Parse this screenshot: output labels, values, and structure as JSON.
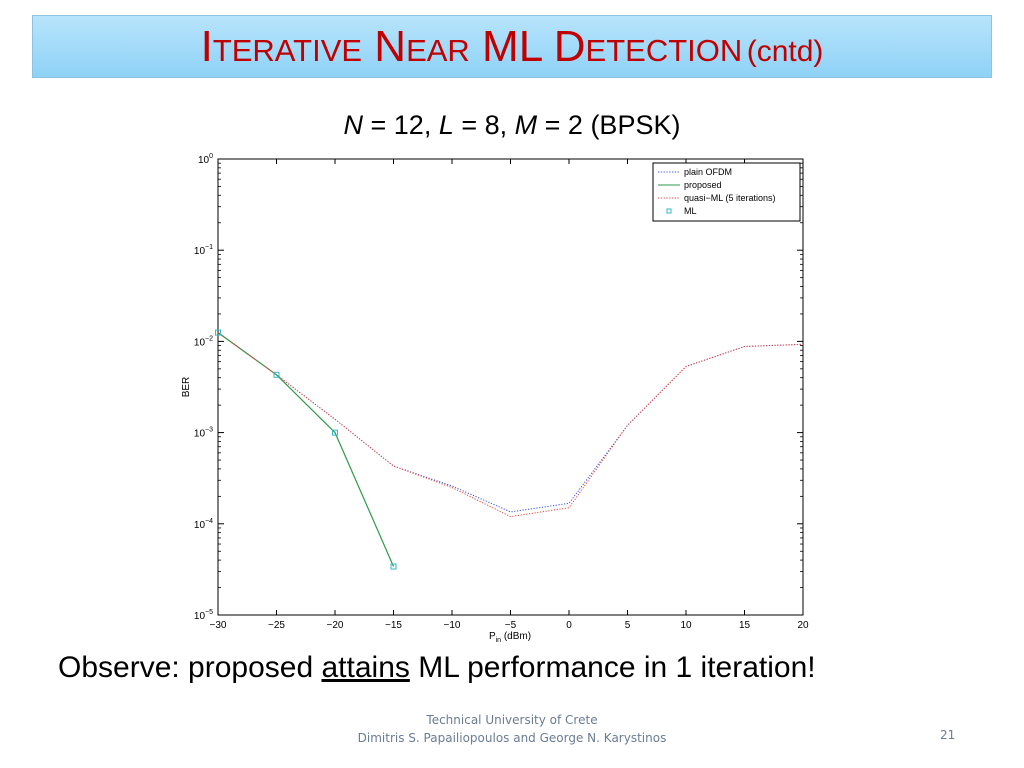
{
  "slide": {
    "title_main": "Iterative Near ML Detection",
    "title_cntd": "(cntd)",
    "subtitle": {
      "n_var": "N",
      "n_eq": " = 12, ",
      "l_var": "L",
      "l_eq": " = 8, ",
      "m_var": "M",
      "m_eq": " = 2 (BPSK)"
    },
    "observe": {
      "before": "Observe: proposed ",
      "underlined": "attains",
      "after": " ML performance in 1 iteration!"
    },
    "footer_line1": "Technical University of Crete",
    "footer_line2": "Dimitris S. Papailiopoulos  and George N. Karystinos",
    "page_number": "21"
  },
  "chart_data": {
    "type": "line",
    "xlabel": "P",
    "xlabel_sub": "in",
    "xlabel_unit": " (dBm)",
    "ylabel": "BER",
    "xlim": [
      -30,
      20
    ],
    "ylim": [
      1e-05,
      1
    ],
    "y_scale": "log",
    "grid": false,
    "legend_position": "top-right",
    "x_ticks": [
      -30,
      -25,
      -20,
      -15,
      -10,
      -5,
      0,
      5,
      10,
      15,
      20
    ],
    "y_ticks": [
      {
        "exp": -5,
        "base": "10",
        "sup": "−5"
      },
      {
        "exp": -4,
        "base": "10",
        "sup": "−4"
      },
      {
        "exp": -3,
        "base": "10",
        "sup": "−3"
      },
      {
        "exp": -2,
        "base": "10",
        "sup": "−2"
      },
      {
        "exp": -1,
        "base": "10",
        "sup": "−1"
      },
      {
        "exp": 0,
        "base": "10",
        "sup": "0"
      }
    ],
    "series": [
      {
        "name": "plain OFDM",
        "style": "dotted",
        "color": "#3b4fd8",
        "x": [
          -30,
          -25,
          -20,
          -15,
          -10,
          -5,
          0,
          5,
          10,
          15,
          20
        ],
        "y": [
          0.0125,
          0.0043,
          0.0014,
          0.00043,
          0.00026,
          0.000135,
          0.000168,
          0.0012,
          0.0053,
          0.0088,
          0.0093
        ]
      },
      {
        "name": "proposed",
        "style": "solid",
        "color": "#2e9a46",
        "x": [
          -30,
          -25,
          -20,
          -15
        ],
        "y": [
          0.0125,
          0.0043,
          0.001,
          3.4e-05
        ]
      },
      {
        "name": "quasi−ML (5 iterations)",
        "style": "dotted",
        "color": "#e0453a",
        "x": [
          -30,
          -25,
          -20,
          -15,
          -10,
          -5,
          0,
          5,
          10,
          15,
          20
        ],
        "y": [
          0.0125,
          0.0043,
          0.0014,
          0.00043,
          0.00025,
          0.00012,
          0.00015,
          0.0012,
          0.0053,
          0.0088,
          0.0093
        ]
      },
      {
        "name": "ML",
        "style": "marker",
        "color": "#33b8c8",
        "x": [
          -30,
          -25,
          -20,
          -15
        ],
        "y": [
          0.0125,
          0.0043,
          0.001,
          3.4e-05
        ]
      }
    ]
  }
}
